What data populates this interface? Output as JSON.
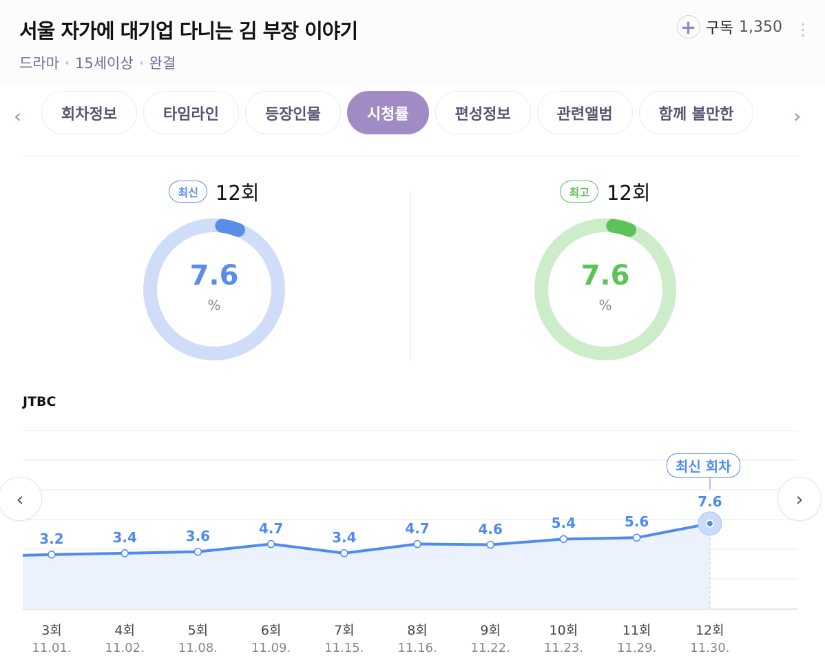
{
  "header": {
    "title": "서울 자가에 대기업 다니는 김 부장 이야기",
    "meta": [
      "드라마",
      "15세이상",
      "완결"
    ],
    "subscribe_label": "구독",
    "subscribe_count": "1,350"
  },
  "tabs": [
    {
      "label": "회차정보"
    },
    {
      "label": "타임라인"
    },
    {
      "label": "등장인물"
    },
    {
      "label": "시청률",
      "active": true
    },
    {
      "label": "편성정보"
    },
    {
      "label": "관련앨범"
    },
    {
      "label": "함께 볼만한"
    }
  ],
  "summary": {
    "latest": {
      "badge": "최신",
      "episode": "12회",
      "value": "7.6",
      "unit": "%",
      "fraction": 0.076,
      "color": "#5a8de8"
    },
    "best": {
      "badge": "최고",
      "episode": "12회",
      "value": "7.6",
      "unit": "%",
      "fraction": 0.076,
      "color": "#5cc25a"
    }
  },
  "chart_data": {
    "type": "line",
    "title": "JTBC",
    "categories": [
      "3회",
      "4회",
      "5회",
      "6회",
      "7회",
      "8회",
      "9회",
      "10회",
      "11회",
      "12회"
    ],
    "dates": [
      "11.01.",
      "11.02.",
      "11.08.",
      "11.09.",
      "11.15.",
      "11.16.",
      "11.22.",
      "11.23.",
      "11.29.",
      "11.30."
    ],
    "values": [
      3.2,
      3.4,
      3.6,
      4.7,
      3.4,
      4.7,
      4.6,
      5.4,
      5.6,
      7.6
    ],
    "labels": [
      "3.2",
      "3.4",
      "3.6",
      "4.7",
      "3.4",
      "4.7",
      "4.6",
      "5.4",
      "5.6",
      "7.6"
    ],
    "annotation": "최신 회차",
    "color": "#4f8af0",
    "grid": true
  }
}
